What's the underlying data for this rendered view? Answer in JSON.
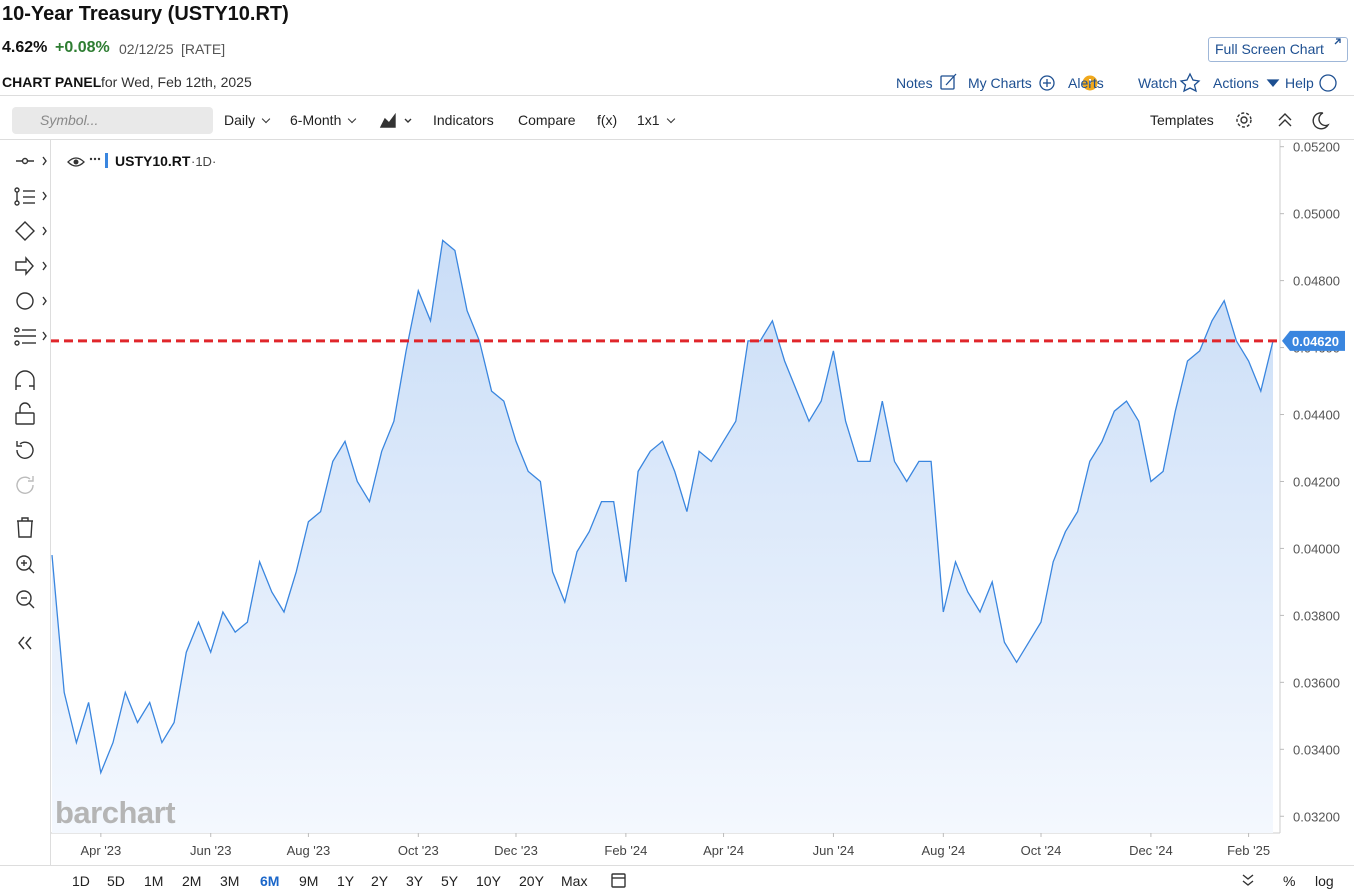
{
  "header": {
    "title": "10-Year Treasury (USTY10.RT)",
    "price": "4.62%",
    "change": "+0.08%",
    "date": "02/12/25",
    "tag": "[RATE]",
    "full_screen": "Full Screen Chart"
  },
  "panel": {
    "label": "CHART PANEL",
    "for": "for Wed, Feb 12th, 2025"
  },
  "nav": [
    "Notes",
    "My Charts",
    "Alerts",
    "Watch",
    "Actions",
    "Help"
  ],
  "toolbar": {
    "search_placeholder": "Symbol...",
    "items": [
      "Daily",
      "6-Month",
      "Indicators",
      "Compare",
      "f(x)",
      "1x1"
    ],
    "templates": "Templates"
  },
  "legend": {
    "symbol": "USTY10.RT",
    "interval": "·1D·"
  },
  "watermark": "barchart",
  "ranges": [
    "1D",
    "5D",
    "1M",
    "2M",
    "3M",
    "6M",
    "9M",
    "1Y",
    "2Y",
    "3Y",
    "5Y",
    "10Y",
    "20Y",
    "Max"
  ],
  "selected_range": "6M",
  "scale_options": [
    "%",
    "log"
  ],
  "chart_data": {
    "type": "area",
    "categories": [
      null,
      null,
      null,
      null,
      "Apr '23",
      null,
      null,
      null,
      null,
      null,
      null,
      null,
      null,
      "Jun '23",
      null,
      null,
      null,
      null,
      null,
      null,
      null,
      "Aug '23",
      null,
      null,
      null,
      null,
      null,
      null,
      null,
      null,
      "Oct '23",
      null,
      null,
      null,
      null,
      null,
      null,
      null,
      "Dec '23",
      null,
      null,
      null,
      null,
      null,
      null,
      null,
      null,
      "Feb '24",
      null,
      null,
      null,
      null,
      null,
      null,
      null,
      "Apr '24",
      null,
      null,
      null,
      null,
      null,
      null,
      null,
      null,
      "Jun '24",
      null,
      null,
      null,
      null,
      null,
      null,
      null,
      null,
      "Aug '24",
      null,
      null,
      null,
      null,
      null,
      null,
      null,
      "Oct '24",
      null,
      null,
      null,
      null,
      null,
      null,
      null,
      null,
      "Dec '24",
      null,
      null,
      null,
      null,
      null,
      null,
      null,
      "Feb '25",
      null,
      null
    ],
    "series": [
      {
        "name": "USTY10.RT",
        "color": "#3a86df",
        "values": [
          0.0398,
          0.0357,
          0.0342,
          0.0354,
          0.0333,
          0.0342,
          0.0357,
          0.0348,
          0.0354,
          0.0342,
          0.0348,
          0.0369,
          0.0378,
          0.0369,
          0.0381,
          0.0375,
          0.0378,
          0.0396,
          0.0387,
          0.0381,
          0.0393,
          0.0408,
          0.0411,
          0.0426,
          0.0432,
          0.042,
          0.0414,
          0.0429,
          0.0438,
          0.0459,
          0.0477,
          0.0468,
          0.0492,
          0.0489,
          0.0471,
          0.0462,
          0.0447,
          0.0444,
          0.0432,
          0.0423,
          0.042,
          0.0393,
          0.0384,
          0.0399,
          0.0405,
          0.0414,
          0.0414,
          0.039,
          0.0423,
          0.0429,
          0.0432,
          0.0423,
          0.0411,
          0.0429,
          0.0426,
          0.0432,
          0.0438,
          0.0462,
          0.0462,
          0.0468,
          0.0456,
          0.0447,
          0.0438,
          0.0444,
          0.0459,
          0.0438,
          0.0426,
          0.0426,
          0.0444,
          0.0426,
          0.042,
          0.0426,
          0.0426,
          0.0381,
          0.0396,
          0.0387,
          0.0381,
          0.039,
          0.0372,
          0.0366,
          0.0372,
          0.0378,
          0.0396,
          0.0405,
          0.0411,
          0.0426,
          0.0432,
          0.0441,
          0.0444,
          0.0438,
          0.042,
          0.0423,
          0.0441,
          0.0456,
          0.0459,
          0.0468,
          0.0474,
          0.0462,
          0.0456,
          0.0447,
          0.0462
        ]
      }
    ],
    "ylim": [
      0.0315,
      0.0522
    ],
    "yticks": [
      {
        "value": 0.032,
        "label": "0.03200"
      },
      {
        "value": 0.034,
        "label": "0.03400"
      },
      {
        "value": 0.036,
        "label": "0.03600"
      },
      {
        "value": 0.038,
        "label": "0.03800"
      },
      {
        "value": 0.04,
        "label": "0.04000"
      },
      {
        "value": 0.042,
        "label": "0.04200"
      },
      {
        "value": 0.044,
        "label": "0.04400"
      },
      {
        "value": 0.046,
        "label": "0.04600"
      },
      {
        "value": 0.048,
        "label": "0.04800"
      },
      {
        "value": 0.05,
        "label": "0.05000"
      },
      {
        "value": 0.052,
        "label": "0.05200"
      }
    ],
    "grid": false,
    "reference_line": {
      "value": 0.0462,
      "label": "0.04620",
      "color": "#e0262b"
    }
  }
}
